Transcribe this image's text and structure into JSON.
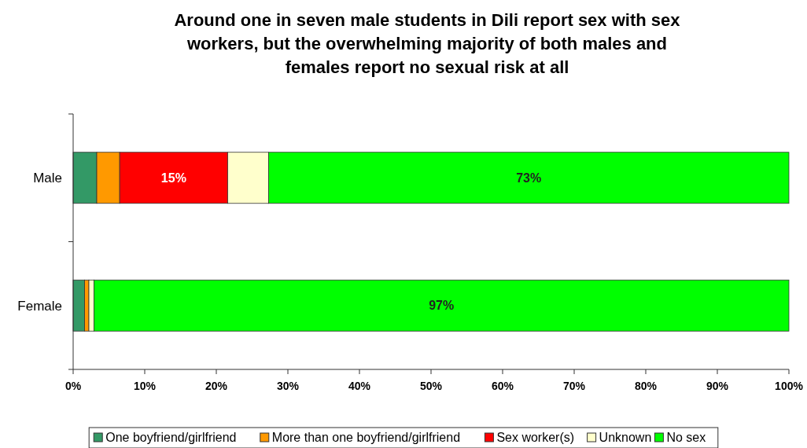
{
  "chart_data": {
    "type": "bar",
    "orientation": "horizontal",
    "stacked": true,
    "title": "Around one in seven male students in Dili report sex with sex workers, but the overwhelming majority of both males and females report no sexual risk at all",
    "categories": [
      "Male",
      "Female"
    ],
    "series": [
      {
        "name": "One boyfriend/girlfriend",
        "color": "#339966",
        "values": [
          3.3,
          1.6
        ]
      },
      {
        "name": "More than one boyfriend/girlfriend",
        "color": "#ff9900",
        "values": [
          3.2,
          0.6
        ]
      },
      {
        "name": "Sex worker(s)",
        "color": "#ff0000",
        "values": [
          15.1,
          null
        ],
        "value_labels": [
          "15%",
          null
        ]
      },
      {
        "name": "Unknown",
        "color": "#ffffcc",
        "values": [
          5.7,
          0.7
        ]
      },
      {
        "name": "No sex",
        "color": "#00ff00",
        "values": [
          72.7,
          97.1
        ],
        "value_labels": [
          "73%",
          "97%"
        ]
      }
    ],
    "xlim": [
      0,
      100
    ],
    "xticks": [
      {
        "value": 0,
        "label": "0%"
      },
      {
        "value": 10,
        "label": "10%"
      },
      {
        "value": 20,
        "label": "20%"
      },
      {
        "value": 30,
        "label": "30%"
      },
      {
        "value": 40,
        "label": "40%"
      },
      {
        "value": 50,
        "label": "50%"
      },
      {
        "value": 60,
        "label": "60%"
      },
      {
        "value": 70,
        "label": "70%"
      },
      {
        "value": 80,
        "label": "80%"
      },
      {
        "value": 90,
        "label": "90%"
      },
      {
        "value": 100,
        "label": "100%"
      }
    ],
    "grid": false,
    "legend": "bottom"
  }
}
